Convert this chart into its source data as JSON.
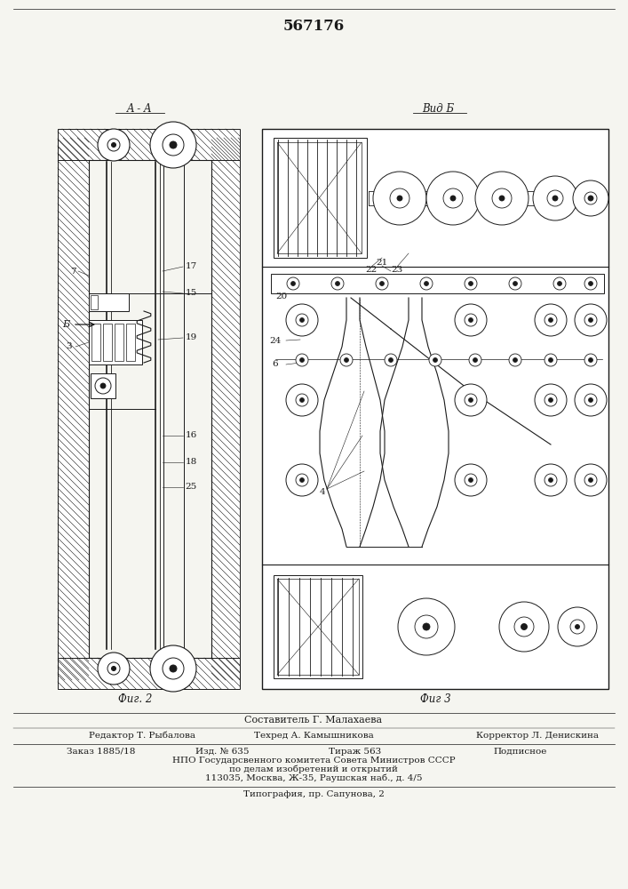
{
  "patent_number": "567176",
  "bg_color": "#f5f5f0",
  "line_color": "#1a1a1a",
  "fig2_label": "Фиг. 2",
  "fig3_label": "Фиг 3",
  "section_label": "A - A",
  "view_label": "Вид Б",
  "arrow_label": "Б",
  "footer_lines": [
    "Составитель Г. Малахаева",
    "Редактор Т. Рыбалова",
    "Техред А. Камышникова",
    "Корректор Л. Денискина",
    "Заказ 1885/18",
    "Изд. № 635",
    "Тираж 563",
    "Подписное",
    "НПО Государсвенного комитета Совета Министров СССР",
    "по делам изобретений и открытий",
    "113035, Москва, Ж-35, Раушская наб., д. 4/5",
    "Типография, пр. Сапунова, 2"
  ]
}
